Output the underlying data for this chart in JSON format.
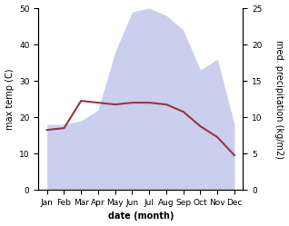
{
  "months": [
    "Jan",
    "Feb",
    "Mar",
    "Apr",
    "May",
    "Jun",
    "Jul",
    "Aug",
    "Sep",
    "Oct",
    "Nov",
    "Dec"
  ],
  "temp_max": [
    16.5,
    17.0,
    24.5,
    24.0,
    23.5,
    24.0,
    24.0,
    23.5,
    21.5,
    17.5,
    14.5,
    9.5
  ],
  "precipitation": [
    9,
    9,
    9.5,
    11,
    19,
    24.5,
    25,
    24,
    22,
    16.5,
    18,
    9
  ],
  "temp_color": "#993344",
  "precip_fill_color": "#b8bfe8",
  "precip_fill_alpha": 0.75,
  "left_ylim": [
    0,
    50
  ],
  "right_ylim": [
    0,
    25
  ],
  "left_yticks": [
    0,
    10,
    20,
    30,
    40,
    50
  ],
  "right_yticks": [
    0,
    5,
    10,
    15,
    20,
    25
  ],
  "xlabel": "date (month)",
  "ylabel_left": "max temp (C)",
  "ylabel_right": "med. precipitation (kg/m2)",
  "bg_color": "#ffffff",
  "ylabel_fontsize": 7,
  "tick_fontsize": 6.5,
  "xlabel_fontsize": 7
}
